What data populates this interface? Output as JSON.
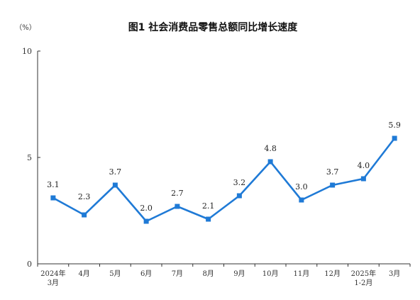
{
  "chart_data": {
    "type": "line",
    "title": "图1  社会消费品零售总额同比增长速度",
    "ylabel": "（%）",
    "xlabel": "",
    "ylim": [
      0,
      10
    ],
    "yticks": [
      "0",
      "5",
      "10"
    ],
    "categories": [
      [
        "2024年",
        "3月"
      ],
      [
        "4月"
      ],
      [
        "5月"
      ],
      [
        "6月"
      ],
      [
        "7月"
      ],
      [
        "8月"
      ],
      [
        "9月"
      ],
      [
        "10月"
      ],
      [
        "11月"
      ],
      [
        "12月"
      ],
      [
        "2025年",
        "1-2月"
      ],
      [
        "3月"
      ]
    ],
    "values": [
      3.1,
      2.3,
      3.7,
      2.0,
      2.7,
      2.1,
      3.2,
      4.8,
      3.0,
      3.7,
      4.0,
      5.9
    ],
    "data_labels": [
      "3.1",
      "",
      "3.7",
      "2.0",
      "2.7",
      "2.1",
      "3.2",
      "4.8",
      "3.0",
      "3.7",
      "4.0",
      "5.9"
    ],
    "data_labels_below": [
      "",
      "2.3",
      "",
      "",
      "",
      "",
      "",
      "",
      "",
      "",
      "",
      ""
    ],
    "series_color": "#1f7ad6",
    "grid": false
  }
}
